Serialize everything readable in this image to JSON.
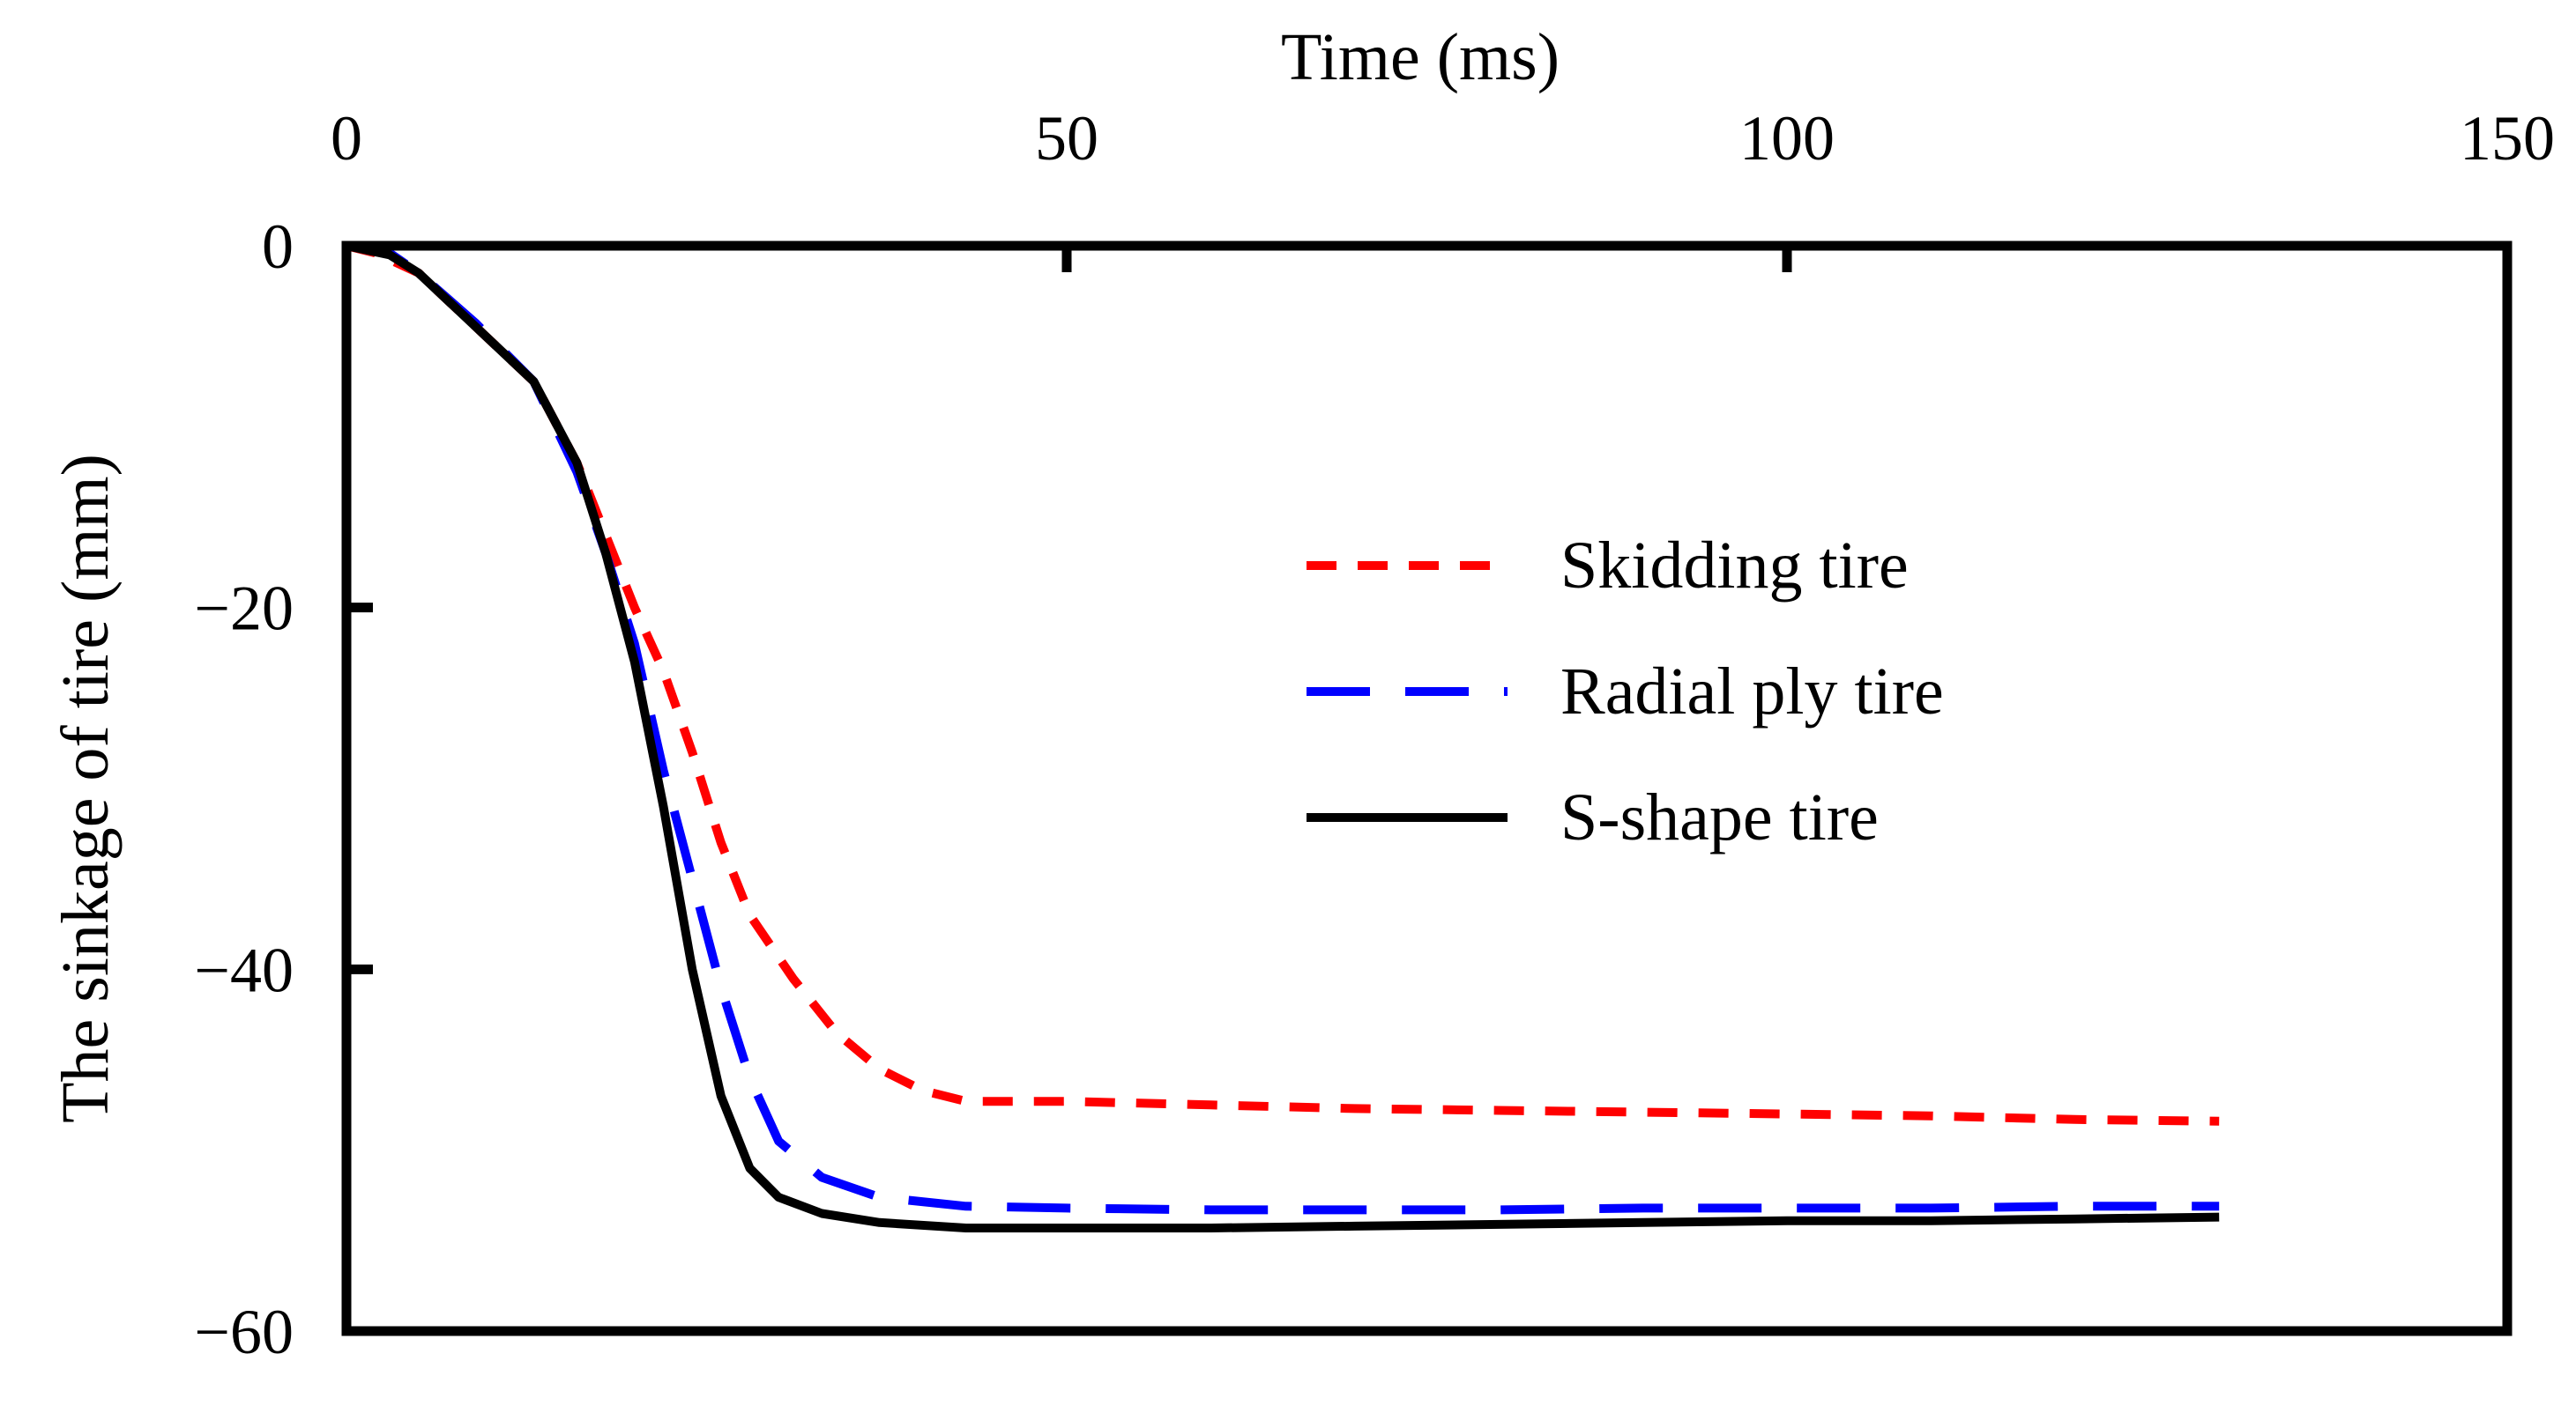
{
  "chart_data": {
    "type": "line",
    "title": "",
    "xlabel": "Time (ms)",
    "ylabel": "The sinkage of tire (mm)",
    "xlim": [
      0,
      150
    ],
    "ylim": [
      -60,
      0
    ],
    "xticks": [
      0,
      50,
      100,
      150
    ],
    "yticks": [
      0,
      -20,
      -40,
      -60
    ],
    "xtick_labels": [
      "0",
      "50",
      "100",
      "150"
    ],
    "ytick_labels": [
      "0",
      "−20",
      "−40",
      "−60"
    ],
    "legend_position": "center-right",
    "grid": false,
    "series": [
      {
        "name": "Skidding tire",
        "color": "#ff0000",
        "dash": "short-dash",
        "points": [
          [
            0,
            0
          ],
          [
            2,
            -0.4
          ],
          [
            5,
            -1.5
          ],
          [
            9,
            -4.5
          ],
          [
            13,
            -7.5
          ],
          [
            16,
            -12
          ],
          [
            18,
            -16
          ],
          [
            20,
            -20
          ],
          [
            22,
            -23.5
          ],
          [
            24,
            -28
          ],
          [
            26,
            -33
          ],
          [
            28,
            -37
          ],
          [
            31,
            -40.5
          ],
          [
            34,
            -43.5
          ],
          [
            37,
            -45.5
          ],
          [
            40,
            -46.7
          ],
          [
            43,
            -47.3
          ],
          [
            50,
            -47.3
          ],
          [
            60,
            -47.5
          ],
          [
            70,
            -47.7
          ],
          [
            80,
            -47.8
          ],
          [
            90,
            -47.9
          ],
          [
            100,
            -48
          ],
          [
            110,
            -48.1
          ],
          [
            120,
            -48.3
          ],
          [
            130,
            -48.4
          ]
        ]
      },
      {
        "name": "Radial ply tire",
        "color": "#0000ff",
        "dash": "long-dash",
        "points": [
          [
            0,
            0
          ],
          [
            3,
            -0.4
          ],
          [
            5,
            -1.5
          ],
          [
            9,
            -4.3
          ],
          [
            13,
            -7.5
          ],
          [
            16,
            -12.5
          ],
          [
            18,
            -17
          ],
          [
            20,
            -22
          ],
          [
            22,
            -29
          ],
          [
            24,
            -35
          ],
          [
            26,
            -41
          ],
          [
            28,
            -46
          ],
          [
            30,
            -49.5
          ],
          [
            33,
            -51.5
          ],
          [
            37,
            -52.6
          ],
          [
            43,
            -53.1
          ],
          [
            50,
            -53.2
          ],
          [
            60,
            -53.3
          ],
          [
            70,
            -53.3
          ],
          [
            80,
            -53.3
          ],
          [
            90,
            -53.2
          ],
          [
            100,
            -53.2
          ],
          [
            110,
            -53.2
          ],
          [
            120,
            -53.1
          ],
          [
            130,
            -53.1
          ]
        ]
      },
      {
        "name": "S-shape tire",
        "color": "#000000",
        "dash": "solid",
        "points": [
          [
            0,
            0
          ],
          [
            3,
            -0.5
          ],
          [
            5,
            -1.5
          ],
          [
            9,
            -4.5
          ],
          [
            13,
            -7.5
          ],
          [
            16,
            -12
          ],
          [
            18,
            -17
          ],
          [
            20,
            -23
          ],
          [
            22,
            -31
          ],
          [
            24,
            -40
          ],
          [
            26,
            -47
          ],
          [
            28,
            -51
          ],
          [
            30,
            -52.6
          ],
          [
            33,
            -53.5
          ],
          [
            37,
            -54
          ],
          [
            43,
            -54.3
          ],
          [
            50,
            -54.3
          ],
          [
            60,
            -54.3
          ],
          [
            70,
            -54.2
          ],
          [
            80,
            -54.1
          ],
          [
            90,
            -54
          ],
          [
            100,
            -53.9
          ],
          [
            110,
            -53.9
          ],
          [
            120,
            -53.8
          ],
          [
            130,
            -53.7
          ]
        ]
      }
    ]
  }
}
